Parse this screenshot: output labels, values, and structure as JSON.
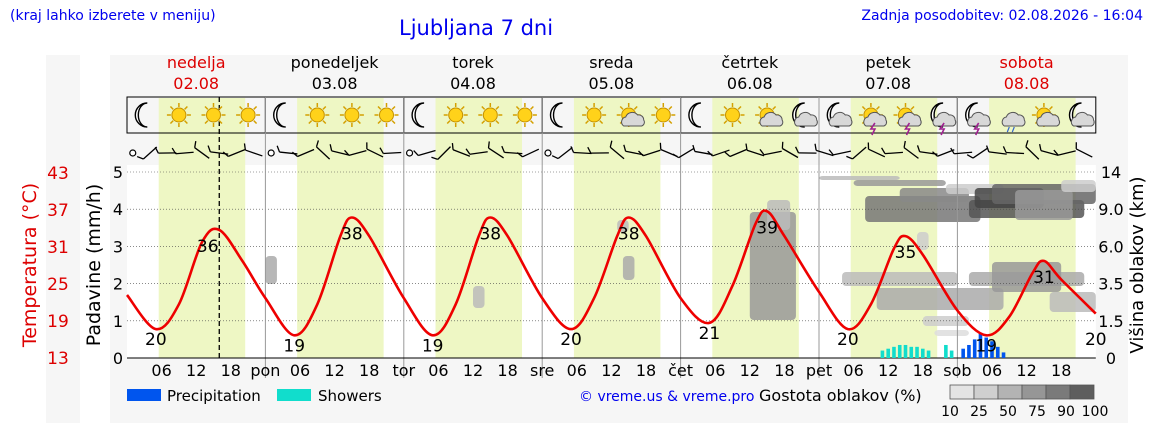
{
  "header": {
    "left_note": "(kraj lahko izberete v meniju)",
    "title": "Ljubljana 7 dni",
    "updated": "Zadnja posodobitev: 02.08.2026 - 16:04"
  },
  "colors": {
    "header_link": "#0000ee",
    "weekend_red": "#dd0000",
    "temperature_line": "#ee0000",
    "daylight_band": "#eef7c4",
    "precipitation": "#0055ee",
    "showers": "#11ddcc"
  },
  "chart_data": {
    "type": "line",
    "days": [
      {
        "name": "nedelja",
        "date": "02.08",
        "short": "",
        "weekend": true
      },
      {
        "name": "ponedeljek",
        "date": "03.08",
        "short": "pon",
        "weekend": false
      },
      {
        "name": "torek",
        "date": "04.08",
        "short": "tor",
        "weekend": false
      },
      {
        "name": "sreda",
        "date": "05.08",
        "short": "sre",
        "weekend": false
      },
      {
        "name": "četrtek",
        "date": "06.08",
        "short": "čet",
        "weekend": false
      },
      {
        "name": "petek",
        "date": "07.08",
        "short": "pet",
        "weekend": false
      },
      {
        "name": "sobota",
        "date": "08.08",
        "short": "sob",
        "weekend": true
      }
    ],
    "hour_ticks": [
      "06",
      "12",
      "18"
    ],
    "left_temp_axis": {
      "label": "Temperatura (°C)",
      "ticks": [
        "43",
        "37",
        "31",
        "25",
        "19",
        "13"
      ]
    },
    "left_precip_axis": {
      "label": "Padavine (mm/h)",
      "ticks": [
        "5",
        "4",
        "3",
        "2",
        "1",
        "0"
      ],
      "range": [
        0,
        5
      ]
    },
    "right_cloud_axis": {
      "label": "Višina oblakov (km)",
      "ticks": [
        "14",
        "9.0",
        "6.0",
        "3.5",
        "1.5",
        "0"
      ]
    },
    "temperature_series": {
      "name": "Temperatura",
      "unit": "°C",
      "points_hours_from_day0": [
        [
          0,
          25.5
        ],
        [
          5,
          20
        ],
        [
          9,
          24
        ],
        [
          13,
          34
        ],
        [
          16,
          36
        ],
        [
          20,
          31
        ],
        [
          24,
          25
        ],
        [
          29,
          19
        ],
        [
          33,
          24
        ],
        [
          37,
          35
        ],
        [
          39,
          38
        ],
        [
          42,
          35
        ],
        [
          48,
          25
        ],
        [
          53,
          19
        ],
        [
          57,
          24
        ],
        [
          61,
          35
        ],
        [
          63,
          38
        ],
        [
          66,
          35
        ],
        [
          72,
          25
        ],
        [
          77,
          20
        ],
        [
          81,
          25
        ],
        [
          85,
          35
        ],
        [
          87,
          38
        ],
        [
          90,
          35
        ],
        [
          96,
          25
        ],
        [
          101,
          21
        ],
        [
          105,
          27
        ],
        [
          109,
          37
        ],
        [
          111,
          39
        ],
        [
          114,
          35
        ],
        [
          120,
          26
        ],
        [
          125,
          20
        ],
        [
          129,
          24
        ],
        [
          133,
          33
        ],
        [
          135,
          35
        ],
        [
          138,
          32
        ],
        [
          144,
          23
        ],
        [
          149,
          19
        ],
        [
          153,
          22
        ],
        [
          157,
          29
        ],
        [
          159,
          31
        ],
        [
          162,
          28
        ],
        [
          168,
          22.5
        ]
      ]
    },
    "temperature_labels": [
      {
        "text": "20",
        "hour": 5
      },
      {
        "text": "36",
        "hour": 14
      },
      {
        "text": "19",
        "hour": 29
      },
      {
        "text": "38",
        "hour": 39
      },
      {
        "text": "19",
        "hour": 53
      },
      {
        "text": "38",
        "hour": 63
      },
      {
        "text": "20",
        "hour": 77
      },
      {
        "text": "38",
        "hour": 87
      },
      {
        "text": "21",
        "hour": 101
      },
      {
        "text": "39",
        "hour": 111
      },
      {
        "text": "20",
        "hour": 125
      },
      {
        "text": "35",
        "hour": 135
      },
      {
        "text": "19",
        "hour": 149
      },
      {
        "text": "31",
        "hour": 159
      },
      {
        "text": "20",
        "hour": 168
      }
    ],
    "precipitation_bars": [
      {
        "hour": 145,
        "value": 0.25
      },
      {
        "hour": 146,
        "value": 0.35
      },
      {
        "hour": 147,
        "value": 0.5
      },
      {
        "hour": 148,
        "value": 0.65
      },
      {
        "hour": 149,
        "value": 0.55
      },
      {
        "hour": 150,
        "value": 0.45
      },
      {
        "hour": 151,
        "value": 0.3
      },
      {
        "hour": 152,
        "value": 0.15
      }
    ],
    "shower_bars": [
      {
        "hour": 131,
        "value": 0.2
      },
      {
        "hour": 132,
        "value": 0.25
      },
      {
        "hour": 133,
        "value": 0.3
      },
      {
        "hour": 134,
        "value": 0.35
      },
      {
        "hour": 135,
        "value": 0.35
      },
      {
        "hour": 136,
        "value": 0.3
      },
      {
        "hour": 137,
        "value": 0.3
      },
      {
        "hour": 138,
        "value": 0.25
      },
      {
        "hour": 139,
        "value": 0.2
      },
      {
        "hour": 142,
        "value": 0.35
      },
      {
        "hour": 143,
        "value": 0.2
      }
    ],
    "current_time_hour": 16,
    "legend": {
      "precipitation": "Precipitation",
      "showers": "Showers",
      "credit": "© vreme.us & vreme.pro",
      "cloud_density_label": "Gostota oblakov (%)",
      "cloud_density_steps": [
        "10",
        "25",
        "50",
        "75",
        "90",
        "100"
      ]
    },
    "weather_icons": [
      "moon",
      "sun",
      "sun",
      "sun",
      "moon",
      "sun",
      "sun",
      "sun",
      "moon",
      "sun",
      "sun",
      "sun",
      "moon",
      "sun",
      "sun-cloud",
      "sun",
      "moon",
      "sun",
      "sun-cloud",
      "moon-cloud",
      "moon-cloud",
      "sun-storm",
      "sun-storm",
      "moon-storm",
      "moon-storm",
      "cloud-rain",
      "sun-cloud",
      "moon-cloud"
    ]
  }
}
